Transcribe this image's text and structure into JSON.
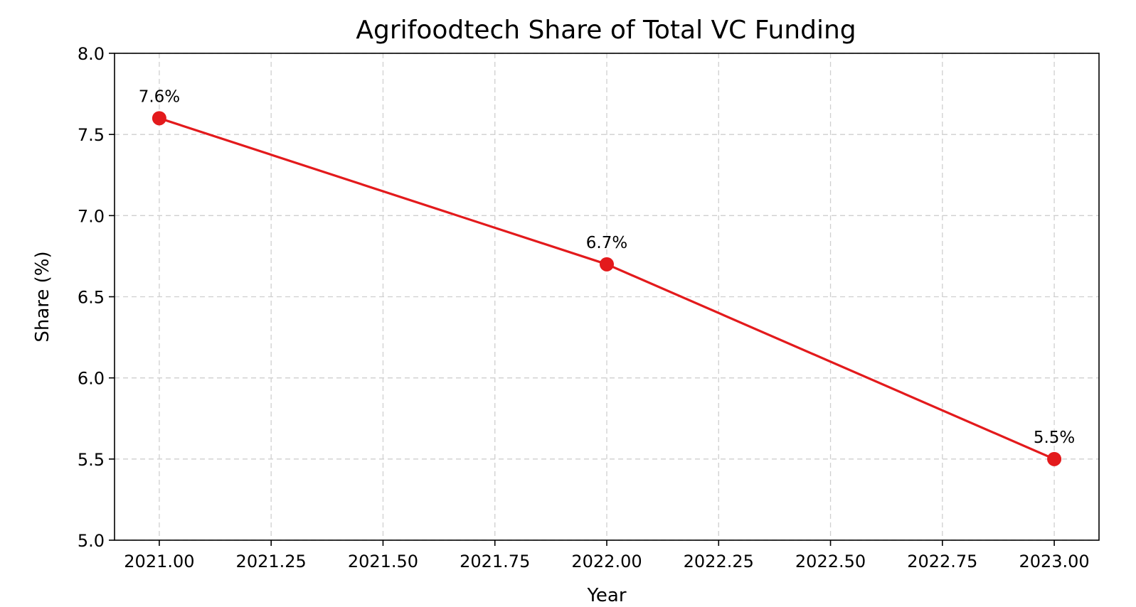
{
  "chart_data": {
    "type": "line",
    "title": "Agrifoodtech Share of Total VC Funding",
    "xlabel": "Year",
    "ylabel": "Share (%)",
    "xlim": [
      2020.9,
      2023.1
    ],
    "ylim": [
      5.0,
      8.0
    ],
    "x_ticks": [
      2021.0,
      2021.25,
      2021.5,
      2021.75,
      2022.0,
      2022.25,
      2022.5,
      2022.75,
      2023.0
    ],
    "x_tick_labels": [
      "2021.00",
      "2021.25",
      "2021.50",
      "2021.75",
      "2022.00",
      "2022.25",
      "2022.50",
      "2022.75",
      "2023.00"
    ],
    "y_ticks": [
      5.0,
      5.5,
      6.0,
      6.5,
      7.0,
      7.5,
      8.0
    ],
    "y_tick_labels": [
      "5.0",
      "5.5",
      "6.0",
      "6.5",
      "7.0",
      "7.5",
      "8.0"
    ],
    "grid": true,
    "series": [
      {
        "color": "#e31a1c",
        "marker": "circle",
        "x": [
          2021,
          2022,
          2023
        ],
        "y": [
          7.6,
          6.7,
          5.5
        ],
        "labels": [
          "7.6%",
          "6.7%",
          "5.5%"
        ]
      }
    ]
  }
}
